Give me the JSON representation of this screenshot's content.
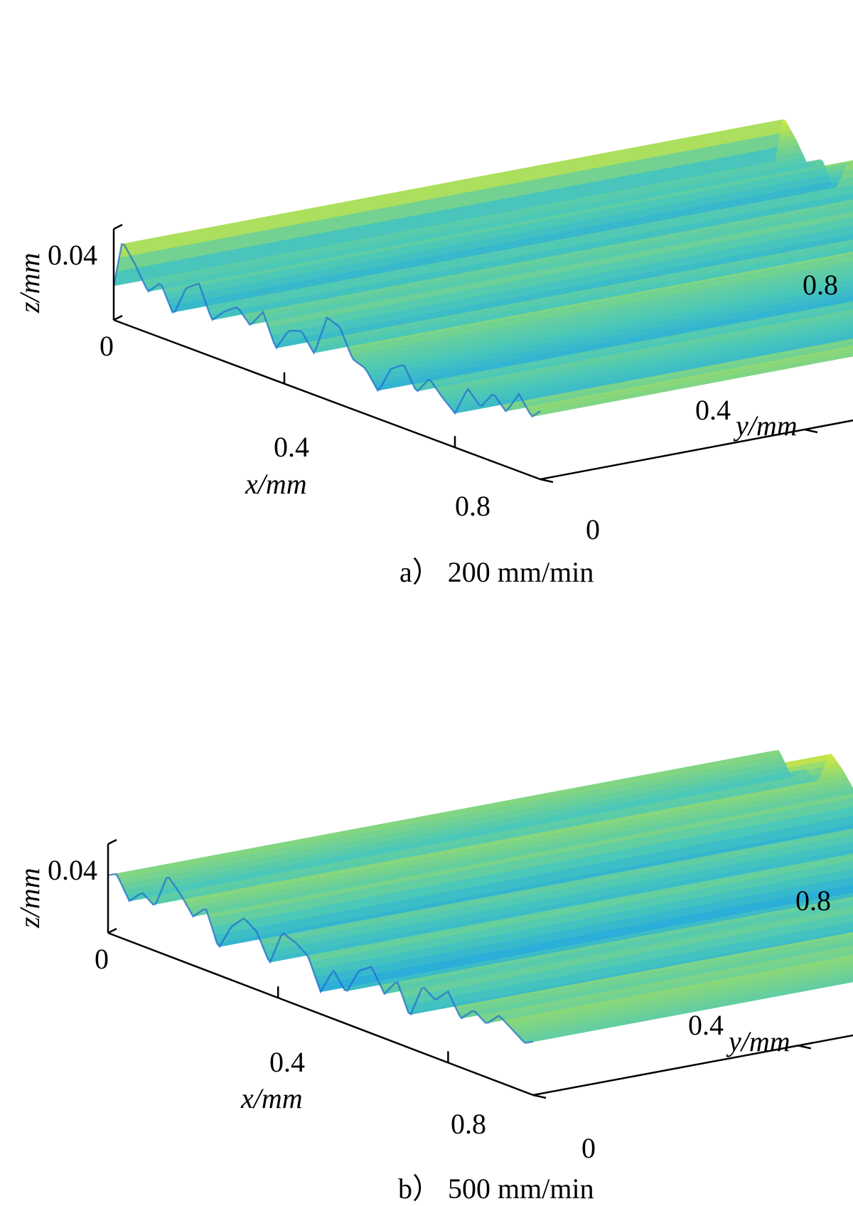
{
  "colors": {
    "low": "#1e64d2",
    "mid_low": "#23a8e0",
    "mid": "#4cc8b8",
    "mid_high": "#8cd878",
    "high": "#f8f020"
  },
  "chart_data": [
    {
      "type": "surface",
      "caption": "a）  200 mm/min",
      "xlabel": "x/mm",
      "ylabel": "y/mm",
      "zlabel": "z/mm",
      "xlim": [
        0,
        1.0
      ],
      "ylim": [
        0,
        1.0
      ],
      "zlim": [
        0,
        0.04
      ],
      "x_ticks": [
        "0.4",
        "0.8"
      ],
      "y_ticks": [
        "0",
        "0.4",
        "0.8"
      ],
      "z_ticks": [
        "0",
        "0.04"
      ],
      "x_tick_values": [
        0.4,
        0.8
      ],
      "y_tick_values": [
        0,
        0.4,
        0.8
      ],
      "z_tick_values": [
        0,
        0.04
      ],
      "profile_x": [
        0,
        0.02,
        0.05,
        0.08,
        0.11,
        0.14,
        0.17,
        0.2,
        0.23,
        0.26,
        0.29,
        0.32,
        0.35,
        0.38,
        0.41,
        0.44,
        0.47,
        0.5,
        0.53,
        0.56,
        0.59,
        0.62,
        0.65,
        0.68,
        0.71,
        0.74,
        0.77,
        0.8,
        0.83,
        0.86,
        0.89,
        0.92,
        0.95,
        0.98,
        1.0
      ],
      "profile_z": [
        0.015,
        0.036,
        0.028,
        0.018,
        0.024,
        0.012,
        0.026,
        0.03,
        0.016,
        0.022,
        0.026,
        0.02,
        0.028,
        0.014,
        0.024,
        0.026,
        0.018,
        0.036,
        0.034,
        0.022,
        0.02,
        0.012,
        0.024,
        0.028,
        0.018,
        0.026,
        0.02,
        0.015,
        0.028,
        0.022,
        0.03,
        0.024,
        0.034,
        0.026,
        0.03
      ]
    },
    {
      "type": "surface",
      "caption": "b）  500 mm/min",
      "xlabel": "x/mm",
      "ylabel": "y/mm",
      "zlabel": "z/mm",
      "xlim": [
        0,
        1.0
      ],
      "ylim": [
        0,
        1.0
      ],
      "zlim": [
        0,
        0.04
      ],
      "x_ticks": [
        "0.4",
        "0.8"
      ],
      "y_ticks": [
        "0",
        "0.4",
        "0.8"
      ],
      "z_ticks": [
        "0",
        "0.04"
      ],
      "x_tick_values": [
        0.4,
        0.8
      ],
      "y_tick_values": [
        0,
        0.4,
        0.8
      ],
      "z_tick_values": [
        0,
        0.04
      ],
      "profile_x": [
        0,
        0.02,
        0.05,
        0.08,
        0.11,
        0.14,
        0.17,
        0.2,
        0.23,
        0.26,
        0.29,
        0.32,
        0.35,
        0.38,
        0.41,
        0.44,
        0.47,
        0.5,
        0.53,
        0.56,
        0.59,
        0.62,
        0.65,
        0.68,
        0.71,
        0.74,
        0.77,
        0.8,
        0.83,
        0.86,
        0.89,
        0.92,
        0.95,
        0.98,
        1.0
      ],
      "profile_z": [
        0.026,
        0.028,
        0.018,
        0.024,
        0.02,
        0.036,
        0.03,
        0.022,
        0.028,
        0.012,
        0.024,
        0.03,
        0.026,
        0.014,
        0.03,
        0.028,
        0.024,
        0.01,
        0.022,
        0.014,
        0.026,
        0.03,
        0.02,
        0.028,
        0.014,
        0.03,
        0.026,
        0.032,
        0.022,
        0.028,
        0.024,
        0.03,
        0.026,
        0.022,
        0.024
      ]
    }
  ]
}
